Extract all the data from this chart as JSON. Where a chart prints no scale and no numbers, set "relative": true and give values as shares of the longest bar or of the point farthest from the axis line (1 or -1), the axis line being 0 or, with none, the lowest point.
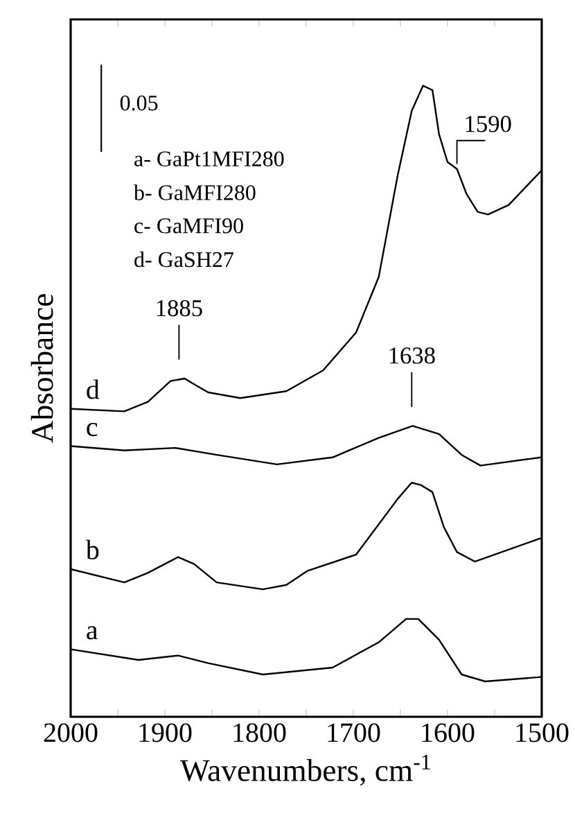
{
  "chart_data": {
    "type": "line",
    "relative": true,
    "xlabel": "Wavenumbers, cm$^{-1}$",
    "ylabel": "Absorbance",
    "xlim": [
      2000,
      1500
    ],
    "xticks": [
      2000,
      {
        "value": 1950,
        "label": null
      },
      1900,
      {
        "value": 1850,
        "label": null
      },
      1800,
      {
        "value": 1750,
        "label": null
      },
      1700,
      {
        "value": 1650,
        "label": null
      },
      1600,
      {
        "value": 1550,
        "label": null
      },
      1500
    ],
    "grid": false,
    "legend": false,
    "marker": "none",
    "line_style": "solid",
    "series": [
      {
        "name": "a",
        "color": "#000000",
        "x": [
          2000,
          1928,
          1886,
          1854,
          1796,
          1722,
          1673,
          1644,
          1631,
          1609,
          1585,
          1560,
          1501
        ],
        "values": [
          0.107,
          0.09,
          0.097,
          0.085,
          0.067,
          0.078,
          0.118,
          0.155,
          0.155,
          0.122,
          0.067,
          0.056,
          0.063
        ]
      },
      {
        "name": "b",
        "color": "#000000",
        "x": [
          2000,
          1943,
          1918,
          1886,
          1869,
          1845,
          1796,
          1771,
          1749,
          1697,
          1653,
          1638,
          1628,
          1616,
          1604,
          1590,
          1571,
          1501
        ],
        "values": [
          0.234,
          0.213,
          0.228,
          0.253,
          0.242,
          0.213,
          0.202,
          0.209,
          0.231,
          0.257,
          0.345,
          0.371,
          0.367,
          0.356,
          0.301,
          0.261,
          0.246,
          0.283
        ]
      },
      {
        "name": "c",
        "color": "#000000",
        "x": [
          2000,
          1943,
          1889,
          1845,
          1781,
          1722,
          1673,
          1637,
          1609,
          1585,
          1565,
          1501
        ],
        "values": [
          0.429,
          0.422,
          0.426,
          0.415,
          0.4,
          0.411,
          0.442,
          0.461,
          0.448,
          0.415,
          0.398,
          0.411
        ]
      },
      {
        "name": "d",
        "color": "#000000",
        "x": [
          2000,
          1943,
          1918,
          1894,
          1879,
          1869,
          1854,
          1820,
          1771,
          1732,
          1697,
          1673,
          1653,
          1638,
          1626,
          1616,
          1609,
          1600,
          1590,
          1580,
          1568,
          1557,
          1535,
          1500
        ],
        "values": [
          0.488,
          0.484,
          0.499,
          0.532,
          0.536,
          0.527,
          0.514,
          0.505,
          0.516,
          0.549,
          0.609,
          0.697,
          0.857,
          0.96,
          1.0,
          0.993,
          0.923,
          0.879,
          0.868,
          0.829,
          0.8,
          0.796,
          0.811,
          0.866
        ]
      }
    ],
    "annotations": [
      "0.05",
      "a- GaPt1MFI280",
      "b- GaMFI280",
      "c- GaMFI90",
      "d- GaSH27",
      {
        "text": "1885",
        "x": 1885,
        "y": 0.536
      },
      {
        "text": "1638",
        "x": 1638,
        "y": 0.461
      },
      {
        "text": "1590",
        "x": 1590,
        "y": 0.868
      }
    ]
  }
}
